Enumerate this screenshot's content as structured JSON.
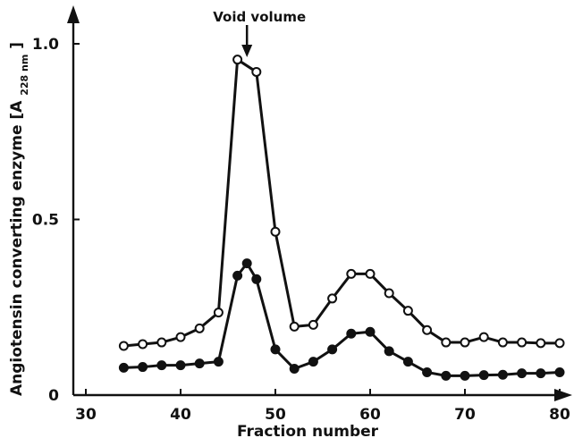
{
  "chart_data": {
    "type": "line",
    "title": "",
    "xlabel": "Fraction number",
    "ylabel": "Angiotensin converting enzyme [A",
    "ylabel_subscript": "228 nm",
    "ylabel_closing": "]",
    "xlim": [
      30,
      82
    ],
    "ylim": [
      0,
      1.1
    ],
    "x_ticks": [
      30,
      40,
      50,
      60,
      70,
      80
    ],
    "y_ticks": [
      0,
      0.5,
      1.0
    ],
    "x_tick_labels": [
      "30",
      "40",
      "50",
      "60",
      "70",
      "80"
    ],
    "y_tick_labels": [
      "0",
      "0.5",
      "1.0"
    ],
    "grid": false,
    "legend": "none",
    "annotation": {
      "text": "Void volume",
      "x": 47
    },
    "series": [
      {
        "marker": "open-circle",
        "color": "#111111",
        "x": [
          34,
          36,
          38,
          40,
          42,
          44,
          46,
          48,
          50,
          52,
          54,
          56,
          58,
          60,
          62,
          64,
          66,
          68,
          70,
          72,
          74,
          76,
          78,
          80
        ],
        "y": [
          0.14,
          0.145,
          0.15,
          0.165,
          0.19,
          0.235,
          0.955,
          0.92,
          0.465,
          0.195,
          0.2,
          0.275,
          0.345,
          0.345,
          0.29,
          0.24,
          0.185,
          0.15,
          0.15,
          0.165,
          0.15,
          0.15,
          0.148,
          0.148
        ]
      },
      {
        "marker": "filled-circle",
        "color": "#111111",
        "x": [
          34,
          36,
          38,
          40,
          42,
          44,
          46,
          47,
          48,
          50,
          52,
          54,
          56,
          58,
          60,
          62,
          64,
          66,
          68,
          70,
          72,
          74,
          76,
          78,
          80
        ],
        "y": [
          0.078,
          0.08,
          0.085,
          0.085,
          0.09,
          0.095,
          0.34,
          0.375,
          0.33,
          0.13,
          0.075,
          0.095,
          0.13,
          0.175,
          0.18,
          0.125,
          0.095,
          0.065,
          0.055,
          0.055,
          0.057,
          0.058,
          0.062,
          0.062,
          0.065
        ]
      }
    ]
  }
}
